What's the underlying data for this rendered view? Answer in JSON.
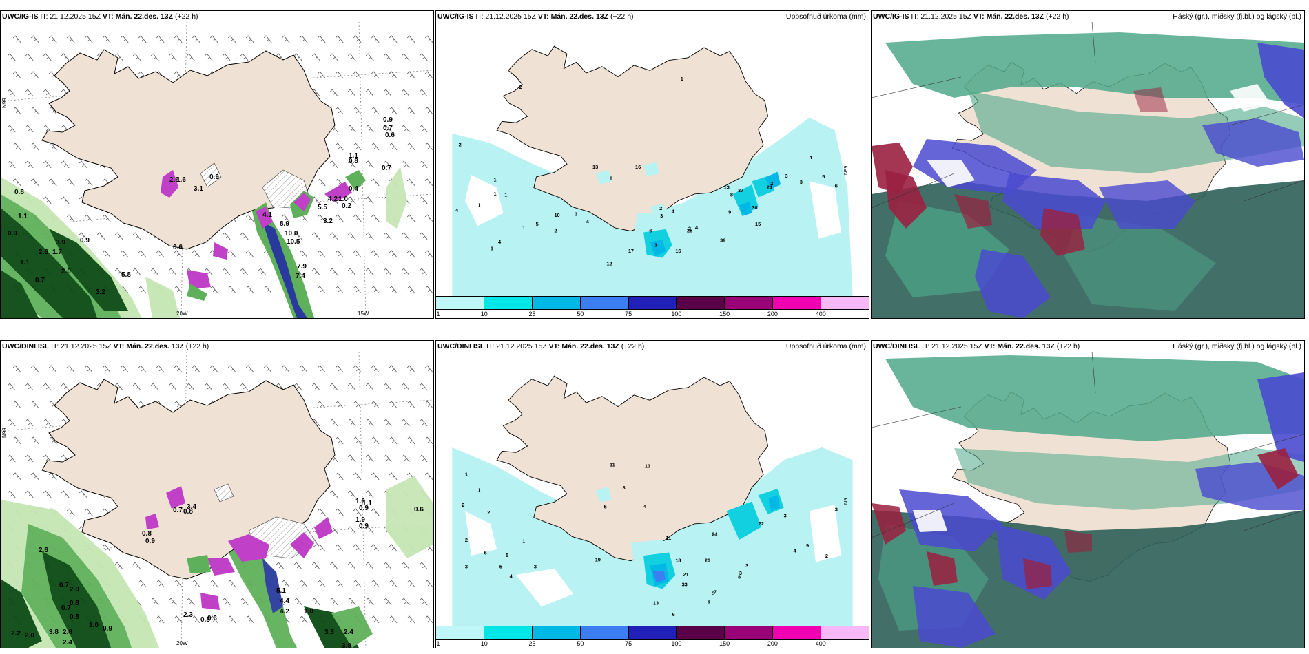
{
  "rows": [
    {
      "model": "UWC/IG-IS",
      "init_time": "IT: 21.12.2025 15Z",
      "valid_time": "VT: Mán. 22.des. 13Z",
      "lead": "(+22 h)",
      "wind_panel": {
        "lat_label": "N99",
        "lon_labels": [
          "20W",
          "15W"
        ],
        "values": [
          "0.9",
          "0.7",
          "0.6",
          "0.8",
          "1.1",
          "0.7",
          "0.8",
          "1.1",
          "0.9",
          "3.9",
          "2.6",
          "1.7",
          "1.1",
          "0.7",
          "5.8",
          "3.2",
          "2.0",
          "0.9",
          "0.6",
          "2.6",
          "3.1",
          "1.6",
          "0.9",
          "4.1",
          "8.9",
          "10.0",
          "10.5",
          "7.9",
          "7.4",
          "5.5",
          "4.2",
          "3.2",
          "1.0",
          "0.2",
          "0.4"
        ]
      },
      "precip_panel": {
        "title": "Uppsöfnuð úrkoma (mm)",
        "lat_label": "N99",
        "values": [
          "2",
          "1",
          "1",
          "1",
          "2",
          "4",
          "1",
          "2",
          "3",
          "4",
          "1",
          "13",
          "16",
          "8",
          "10",
          "3",
          "5",
          "4",
          "2",
          "3",
          "4",
          "6",
          "3",
          "2",
          "17",
          "12",
          "16",
          "25",
          "4",
          "9",
          "30",
          "24",
          "39",
          "15",
          "13",
          "8",
          "37",
          "2",
          "3",
          "3",
          "4",
          "5",
          "6",
          "1"
        ]
      },
      "cloud_panel": {
        "title": "Háský (gr.), miðský (fj.bl.) og lágský (bl.)"
      }
    },
    {
      "model": "UWC/DINI ISL",
      "init_time": "IT: 21.12.2025 15Z",
      "valid_time": "VT: Mán. 22.des. 13Z",
      "lead": "(+22 h)",
      "wind_panel": {
        "lat_label": "N99",
        "lon_labels": [
          "20W"
        ],
        "values": [
          "0.6",
          "0.8",
          "0.9",
          "0.7",
          "0.8",
          "1.1",
          "3.4",
          "1.9",
          "0.9",
          "2.6",
          "0.7",
          "0.7",
          "2.0",
          "0.8",
          "0.8",
          "1.0",
          "0.9",
          "2.2",
          "2.0",
          "3.8",
          "2.8",
          "2.4",
          "5.1",
          "4.4",
          "4.2",
          "1.0",
          "3.3",
          "2.4",
          "3.9",
          "2.3",
          "0.5",
          "0.6",
          "1.6",
          "0.9"
        ]
      },
      "precip_panel": {
        "title": "Uppsöfnuð úrkoma (mm)",
        "lat_label": "N9",
        "values": [
          "1",
          "1",
          "2",
          "2",
          "2",
          "6",
          "1",
          "3",
          "5",
          "4",
          "3",
          "5",
          "19",
          "11",
          "13",
          "8",
          "5",
          "4",
          "11",
          "18",
          "23",
          "21",
          "24",
          "22",
          "8",
          "7",
          "6",
          "33",
          "13",
          "4",
          "6",
          "5",
          "3",
          "3",
          "3",
          "4",
          "9",
          "2",
          "3"
        ]
      },
      "cloud_panel": {
        "title": "Háský (gr.), miðský (fj.bl.) og lágský (bl.)"
      }
    }
  ],
  "colorbar": {
    "ticks": [
      "1",
      "10",
      "25",
      "50",
      "75",
      "100",
      "150",
      "200",
      "400"
    ],
    "colors": [
      "#bff6f6",
      "#00e5e5",
      "#00b8e6",
      "#3a7ef2",
      "#2020b8",
      "#5a0048",
      "#990077",
      "#f000b0",
      "#f6b8f6"
    ]
  },
  "colors": {
    "land": "#efe2d4",
    "coast": "#000000",
    "green_light": "#c6e6b4",
    "green_mid": "#5fb05a",
    "green_dark": "#0a4a12",
    "magenta": "#c040c8",
    "cyan_light": "#b8f2f2",
    "cyan": "#12d0e0",
    "cloud_teal": "#4fa88b",
    "cloud_dark": "#2e5f56",
    "cloud_blue": "#4a4ad0",
    "cloud_red": "#9a2040"
  }
}
